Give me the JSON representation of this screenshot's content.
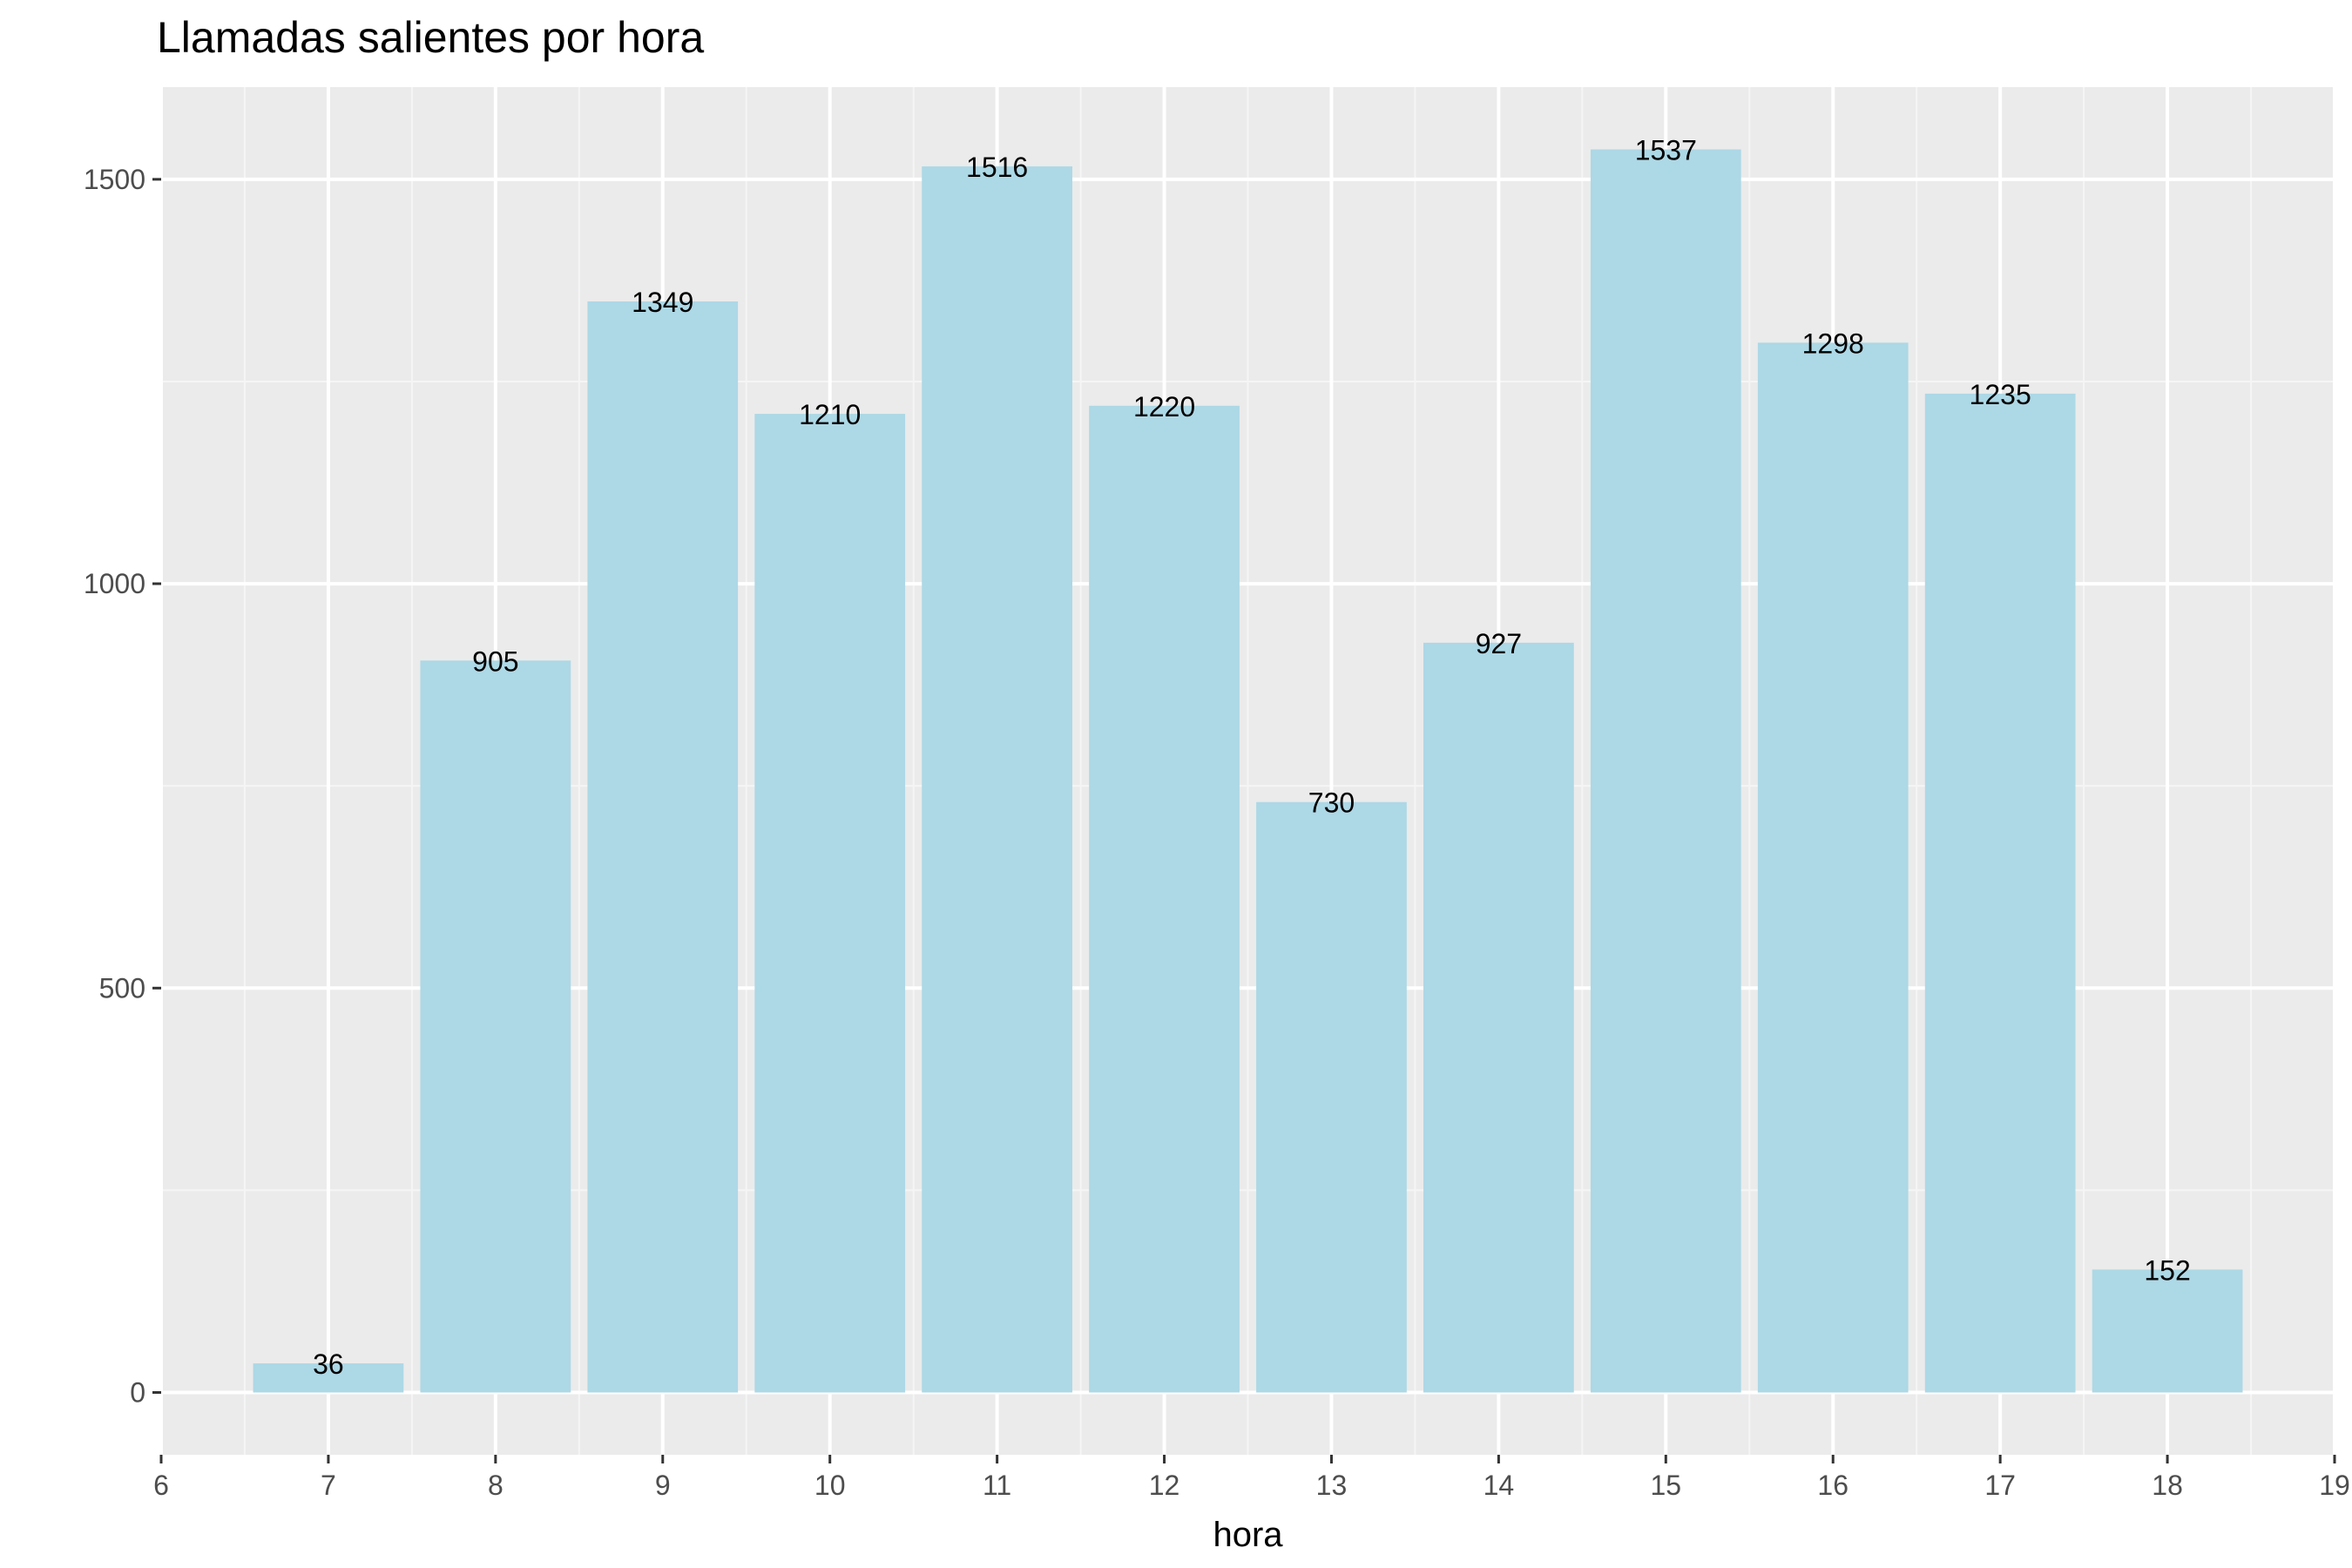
{
  "chart_data": {
    "type": "bar",
    "title": "Llamadas salientes por hora",
    "xlabel": "hora",
    "ylabel": "",
    "x": [
      7,
      8,
      9,
      10,
      11,
      12,
      13,
      14,
      15,
      16,
      17,
      18
    ],
    "values": [
      36,
      905,
      1349,
      1210,
      1516,
      1220,
      730,
      927,
      1537,
      1298,
      1235,
      152
    ],
    "data_labels": [
      "36",
      "905",
      "1349",
      "1210",
      "1516",
      "1220",
      "730",
      "927",
      "1537",
      "1298",
      "1235",
      "152"
    ],
    "xlim": [
      6,
      19
    ],
    "ylim": [
      -77,
      1614
    ],
    "x_ticks": [
      6,
      7,
      8,
      9,
      10,
      11,
      12,
      13,
      14,
      15,
      16,
      17,
      18,
      19
    ],
    "x_tick_labels": [
      "6",
      "7",
      "8",
      "9",
      "10",
      "11",
      "12",
      "13",
      "14",
      "15",
      "16",
      "17",
      "18",
      "19"
    ],
    "y_ticks": [
      0,
      500,
      1000,
      1500
    ],
    "y_tick_labels": [
      "0",
      "500",
      "1000",
      "1500"
    ],
    "grid": true,
    "legend": "none"
  },
  "colors": {
    "panel_background": "#ebebeb",
    "grid_major": "#ffffff",
    "grid_minor": "#f5f5f5",
    "bar_fill": "#add8e6",
    "tick_label": "#4d4d4d",
    "tick_mark": "#333333",
    "text": "#000000"
  }
}
